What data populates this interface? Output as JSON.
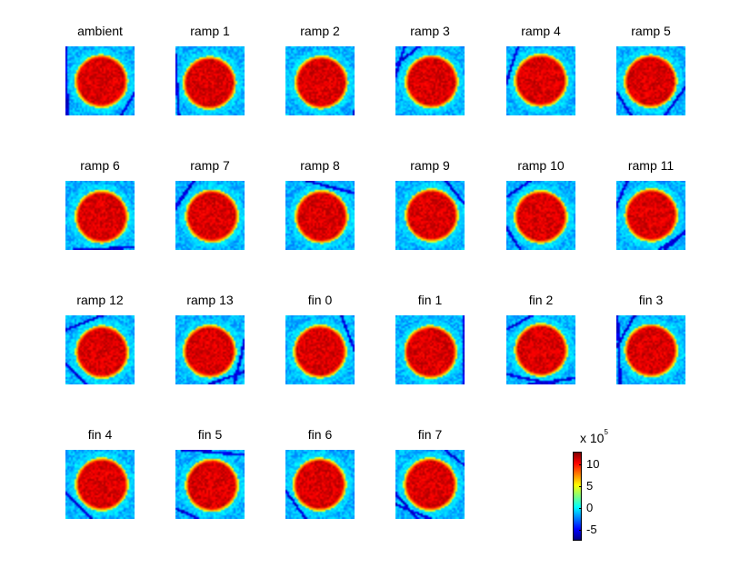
{
  "chart_data": {
    "type": "heatmap",
    "panels": [
      "ambient",
      "ramp 1",
      "ramp 2",
      "ramp 3",
      "ramp 4",
      "ramp 5",
      "ramp 6",
      "ramp 7",
      "ramp 8",
      "ramp 9",
      "ramp 10",
      "ramp 11",
      "ramp 12",
      "ramp 13",
      "fin 0",
      "fin 1",
      "fin 2",
      "fin 3",
      "fin 4",
      "fin 5",
      "fin 6",
      "fin 7"
    ],
    "colormap": "jet",
    "colorbar": {
      "multiplier": "x 10",
      "exponent": "5",
      "ticks": [
        10,
        5,
        0,
        -5
      ],
      "tick_labels": [
        "10",
        "5",
        "0",
        "-5"
      ],
      "range": [
        -7.5,
        13
      ]
    },
    "grid": false
  }
}
